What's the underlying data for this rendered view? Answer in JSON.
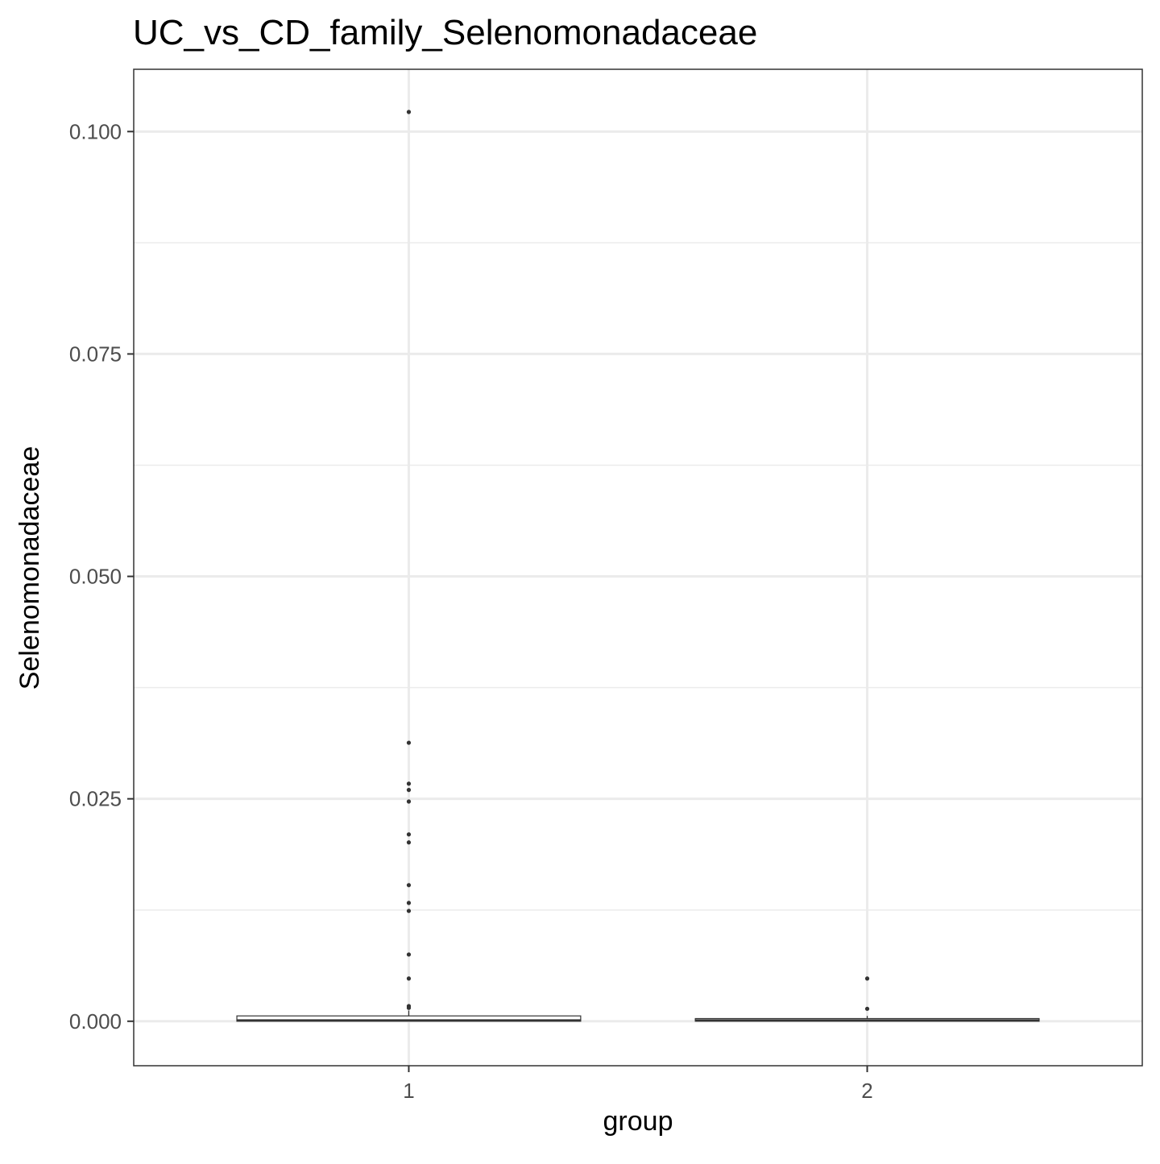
{
  "chart_data": {
    "type": "box",
    "title": "UC_vs_CD_family_Selenomonadaceae",
    "xlabel": "group",
    "ylabel": "Selenomonadaceae",
    "categories": [
      "1",
      "2"
    ],
    "ylim": [
      -0.005,
      0.107
    ],
    "y_ticks": [
      0.0,
      0.025,
      0.05,
      0.075,
      0.1
    ],
    "y_tick_labels": [
      "0.000",
      "0.025",
      "0.050",
      "0.075",
      "0.100"
    ],
    "y_minor_ticks": [
      0.0125,
      0.0375,
      0.0625,
      0.0875
    ],
    "grid": true,
    "boxes": [
      {
        "group": "1",
        "lower_whisker": 0.0,
        "q1": 0.0,
        "median": 0.0001,
        "q3": 0.0006,
        "upper_whisker": 0.0012
      },
      {
        "group": "2",
        "lower_whisker": 0.0,
        "q1": 0.0,
        "median": 0.0001,
        "q3": 0.0003,
        "upper_whisker": 0.0006
      }
    ],
    "outliers": [
      {
        "group": "1",
        "values": [
          0.1022,
          0.0313,
          0.0267,
          0.026,
          0.0247,
          0.021,
          0.0201,
          0.0153,
          0.0133,
          0.0124,
          0.0075,
          0.0048,
          0.0017,
          0.0015
        ]
      },
      {
        "group": "2",
        "values": [
          0.0048,
          0.0014
        ]
      }
    ],
    "colors": {
      "panel_border": "#333333",
      "grid": "#ebebeb",
      "points": "#333333",
      "box_fill": "#ffffff",
      "box_stroke": "#333333"
    }
  }
}
